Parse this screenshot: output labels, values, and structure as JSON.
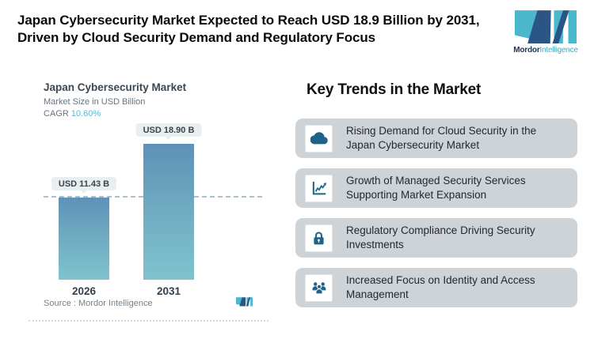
{
  "header": {
    "title": "Japan Cybersecurity Market Expected to Reach USD 18.9 Billion by 2031, Driven by Cloud Security Demand and Regulatory Focus",
    "brand": {
      "name_bold": "Mordor",
      "name_light": "Intelligence"
    }
  },
  "chart_card": {
    "title": "Japan Cybersecurity Market",
    "subtitle": "Market Size in USD Billion",
    "cagr_label": "CAGR",
    "cagr_value": "10.60%",
    "source_label": "Source :  Mordor Intelligence",
    "bars": [
      {
        "year": "2026",
        "label": "USD 11.43 B",
        "value": 11.43
      },
      {
        "year": "2031",
        "label": "USD 18.90 B",
        "value": 18.9
      }
    ]
  },
  "chart_data": {
    "type": "bar",
    "title": "Japan Cybersecurity Market",
    "subtitle": "Market Size in USD Billion",
    "categories": [
      "2026",
      "2031"
    ],
    "values": [
      11.43,
      18.9
    ],
    "data_labels": [
      "USD 11.43 B",
      "USD 18.90 B"
    ],
    "cagr": "10.60%",
    "ylabel": "Market Size in USD Billion",
    "xlabel": "",
    "ylim": [
      0,
      20.9
    ],
    "reference_line": 11.43,
    "grid": false,
    "legend": false,
    "source": "Mordor Intelligence"
  },
  "trends": {
    "heading": "Key Trends in the Market",
    "items": [
      {
        "icon": "cloud-icon",
        "text": "Rising Demand for Cloud Security in the Japan Cybersecurity Market"
      },
      {
        "icon": "line-chart-icon",
        "text": "Growth of Managed Security Services Supporting Market Expansion"
      },
      {
        "icon": "lock-icon",
        "text": "Regulatory Compliance Driving Security Investments"
      },
      {
        "icon": "users-icon",
        "text": "Increased Focus on Identity and Access Management"
      }
    ]
  },
  "colors": {
    "accent_teal": "#4ab7cd",
    "brand_navy": "#2a5585",
    "bar_gradient_top": "#5e91b7",
    "bar_gradient_bottom": "#7fc3ce",
    "icon_blue": "#1f6488",
    "trend_card_gray": "#ced3d8",
    "cagr_teal": "#56b8d4"
  }
}
